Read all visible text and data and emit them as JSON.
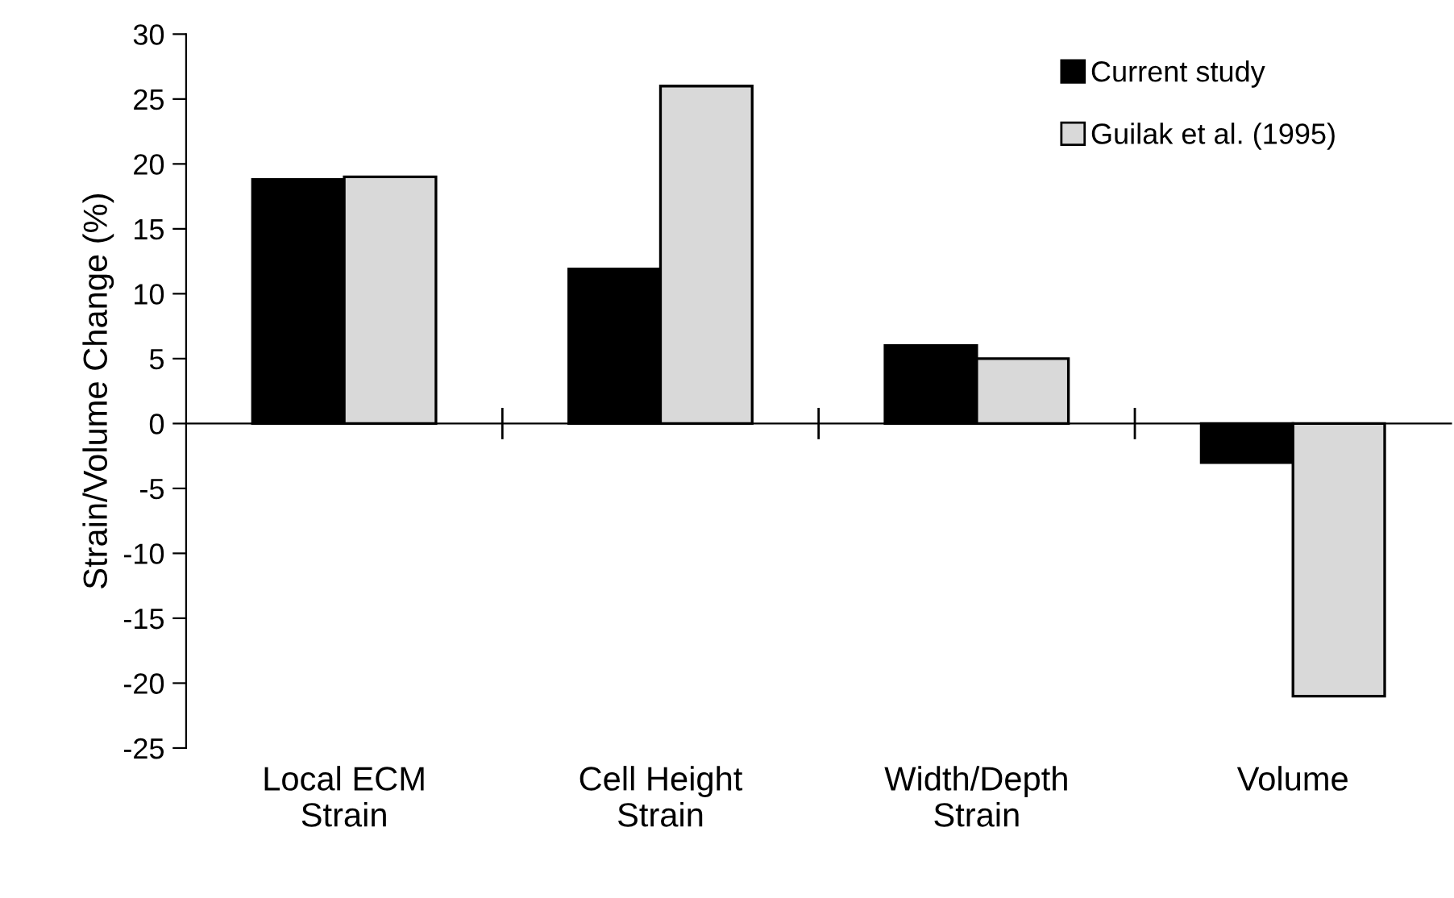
{
  "chart_data": {
    "type": "bar",
    "ylabel": "Strain/Volume Change (%)",
    "categories": [
      "Local ECM\nStrain",
      "Cell Height\nStrain",
      "Width/Depth\nStrain",
      "Volume"
    ],
    "series": [
      {
        "name": "Current study",
        "color": "#000000",
        "values": [
          18.8,
          11.9,
          6,
          -3
        ]
      },
      {
        "name": "Guilak et al. (1995)",
        "color": "#d9d9d9",
        "values": [
          19,
          26,
          5,
          -21
        ]
      }
    ],
    "ylim": [
      -25,
      30
    ],
    "yticks": [
      -25,
      -20,
      -15,
      -10,
      -5,
      0,
      5,
      10,
      15,
      20,
      25,
      30
    ],
    "legend": "top right"
  }
}
